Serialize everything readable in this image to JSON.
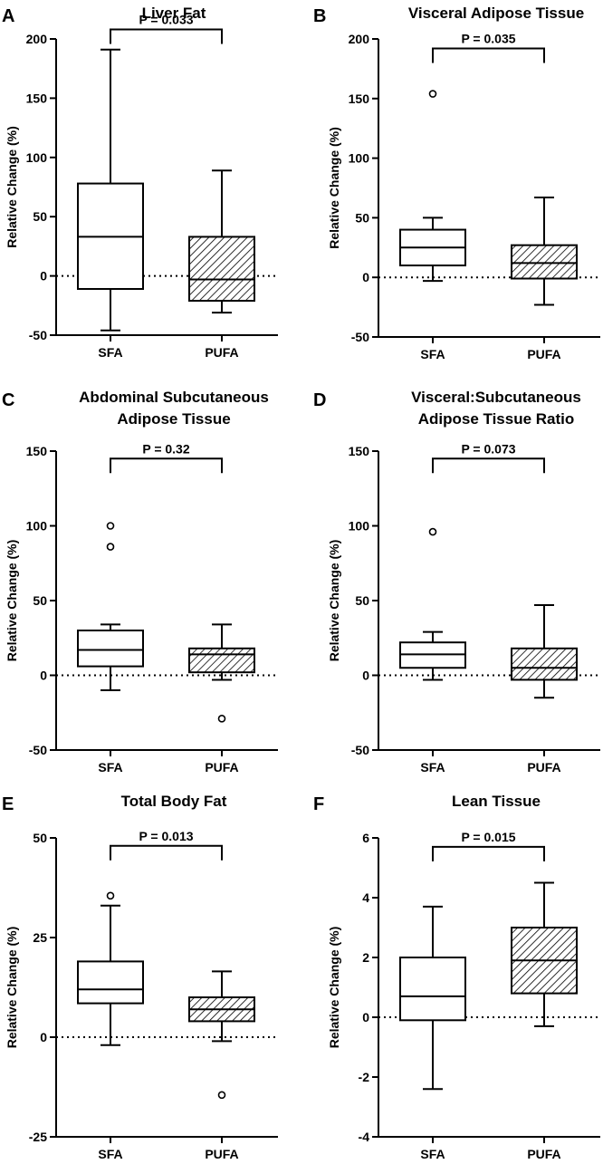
{
  "chart_data": [
    {
      "type": "box",
      "panel": "A",
      "title": [
        "Liver Fat"
      ],
      "ylabel": "Relative Change (%)",
      "ylim": [
        -50,
        200
      ],
      "yticks": [
        -50,
        0,
        50,
        100,
        150,
        200
      ],
      "categories": [
        "SFA",
        "PUFA"
      ],
      "boxes": [
        {
          "name": "SFA",
          "min": -46,
          "q1": -11,
          "median": 33,
          "q3": 78,
          "max": 191,
          "outliers": [],
          "hatched": false
        },
        {
          "name": "PUFA",
          "min": -31,
          "q1": -21,
          "median": -3,
          "q3": 33,
          "max": 89,
          "outliers": [],
          "hatched": true
        }
      ],
      "pvalue": "P = 0.033",
      "pvalue_y": 208,
      "reference_line": 0
    },
    {
      "type": "box",
      "panel": "B",
      "title": [
        "Visceral Adipose Tissue"
      ],
      "ylabel": "Relative Change (%)",
      "ylim": [
        -50,
        200
      ],
      "yticks": [
        -50,
        0,
        50,
        100,
        150,
        200
      ],
      "categories": [
        "SFA",
        "PUFA"
      ],
      "boxes": [
        {
          "name": "SFA",
          "min": -3,
          "q1": 10,
          "median": 25,
          "q3": 40,
          "max": 50,
          "outliers": [
            154
          ],
          "hatched": false
        },
        {
          "name": "PUFA",
          "min": -23,
          "q1": -1,
          "median": 12,
          "q3": 27,
          "max": 67,
          "outliers": [],
          "hatched": true
        }
      ],
      "pvalue": "P = 0.035",
      "pvalue_y": 192,
      "reference_line": 0
    },
    {
      "type": "box",
      "panel": "C",
      "title": [
        "Abdominal Subcutaneous",
        "Adipose Tissue"
      ],
      "ylabel": "Relative Change (%)",
      "ylim": [
        -50,
        150
      ],
      "yticks": [
        -50,
        0,
        50,
        100,
        150
      ],
      "categories": [
        "SFA",
        "PUFA"
      ],
      "boxes": [
        {
          "name": "SFA",
          "min": -10,
          "q1": 6,
          "median": 17,
          "q3": 30,
          "max": 34,
          "outliers": [
            86,
            100
          ],
          "hatched": false
        },
        {
          "name": "PUFA",
          "min": -3,
          "q1": 2,
          "median": 14,
          "q3": 18,
          "max": 34,
          "outliers": [
            -29
          ],
          "hatched": true
        }
      ],
      "pvalue": "P = 0.32",
      "pvalue_y": 145,
      "reference_line": 0
    },
    {
      "type": "box",
      "panel": "D",
      "title": [
        "Visceral:Subcutaneous",
        "Adipose Tissue Ratio"
      ],
      "ylabel": "Relative Change (%)",
      "ylim": [
        -50,
        150
      ],
      "yticks": [
        -50,
        0,
        50,
        100,
        150
      ],
      "categories": [
        "SFA",
        "PUFA"
      ],
      "boxes": [
        {
          "name": "SFA",
          "min": -3,
          "q1": 5,
          "median": 14,
          "q3": 22,
          "max": 29,
          "outliers": [
            96
          ],
          "hatched": false
        },
        {
          "name": "PUFA",
          "min": -15,
          "q1": -3,
          "median": 5,
          "q3": 18,
          "max": 47,
          "outliers": [],
          "hatched": true
        }
      ],
      "pvalue": "P = 0.073",
      "pvalue_y": 145,
      "reference_line": 0
    },
    {
      "type": "box",
      "panel": "E",
      "title": [
        "Total Body Fat"
      ],
      "ylabel": "Relative Change (%)",
      "ylim": [
        -25,
        50
      ],
      "yticks": [
        -25,
        0,
        25,
        50
      ],
      "categories": [
        "SFA",
        "PUFA"
      ],
      "boxes": [
        {
          "name": "SFA",
          "min": -2,
          "q1": 8.5,
          "median": 12,
          "q3": 19,
          "max": 33,
          "outliers": [
            35.5
          ],
          "hatched": false
        },
        {
          "name": "PUFA",
          "min": -1,
          "q1": 4,
          "median": 7,
          "q3": 10,
          "max": 16.5,
          "outliers": [
            -14.5
          ],
          "hatched": true
        }
      ],
      "pvalue": "P = 0.013",
      "pvalue_y": 48,
      "reference_line": 0
    },
    {
      "type": "box",
      "panel": "F",
      "title": [
        "Lean Tissue"
      ],
      "ylabel": "Relative Change (%)",
      "ylim": [
        -4,
        6
      ],
      "yticks": [
        -4,
        -2,
        0,
        2,
        4,
        6
      ],
      "categories": [
        "SFA",
        "PUFA"
      ],
      "boxes": [
        {
          "name": "SFA",
          "min": -2.4,
          "q1": -0.1,
          "median": 0.7,
          "q3": 2.0,
          "max": 3.7,
          "outliers": [],
          "hatched": false
        },
        {
          "name": "PUFA",
          "min": -0.3,
          "q1": 0.8,
          "median": 1.9,
          "q3": 3.0,
          "max": 4.5,
          "outliers": [],
          "hatched": true
        }
      ],
      "pvalue": "P = 0.015",
      "pvalue_y": 5.7,
      "reference_line": 0
    }
  ]
}
